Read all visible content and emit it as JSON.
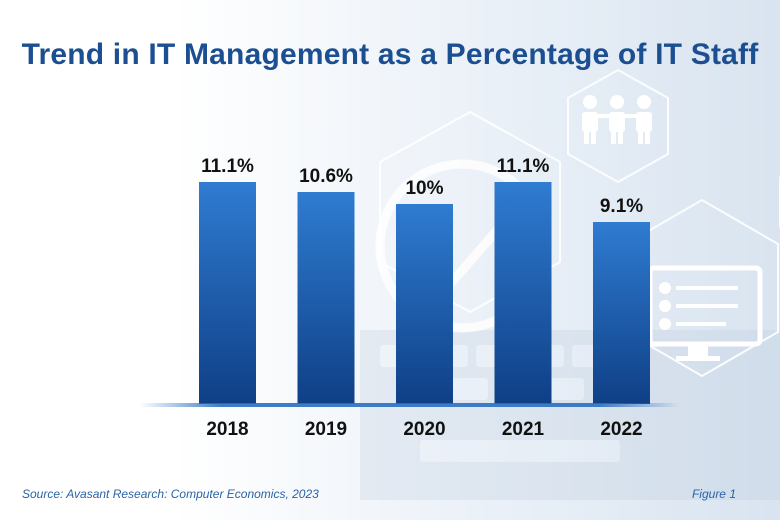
{
  "title": "Trend in IT Management as a Percentage of IT Staff",
  "source": "Source: Avasant Research: Computer Economics, 2023",
  "figure_label": "Figure 1",
  "colors": {
    "title": "#1b4f91",
    "bar_top": "#2f7cd1",
    "bar_bottom": "#0f3f86",
    "label": "#111111",
    "footer": "#2a63a6"
  },
  "chart_data": {
    "type": "bar",
    "title": "Trend in IT Management as a Percentage of IT Staff",
    "categories": [
      "2018",
      "2019",
      "2020",
      "2021",
      "2022"
    ],
    "values": [
      11.1,
      10.6,
      10,
      11.1,
      9.1
    ],
    "data_labels": [
      "11.1%",
      "10.6%",
      "10%",
      "11.1%",
      "9.1%"
    ],
    "xlabel": "",
    "ylabel": "",
    "ylim": [
      0,
      11.1
    ],
    "grid": false,
    "legend": "none"
  }
}
